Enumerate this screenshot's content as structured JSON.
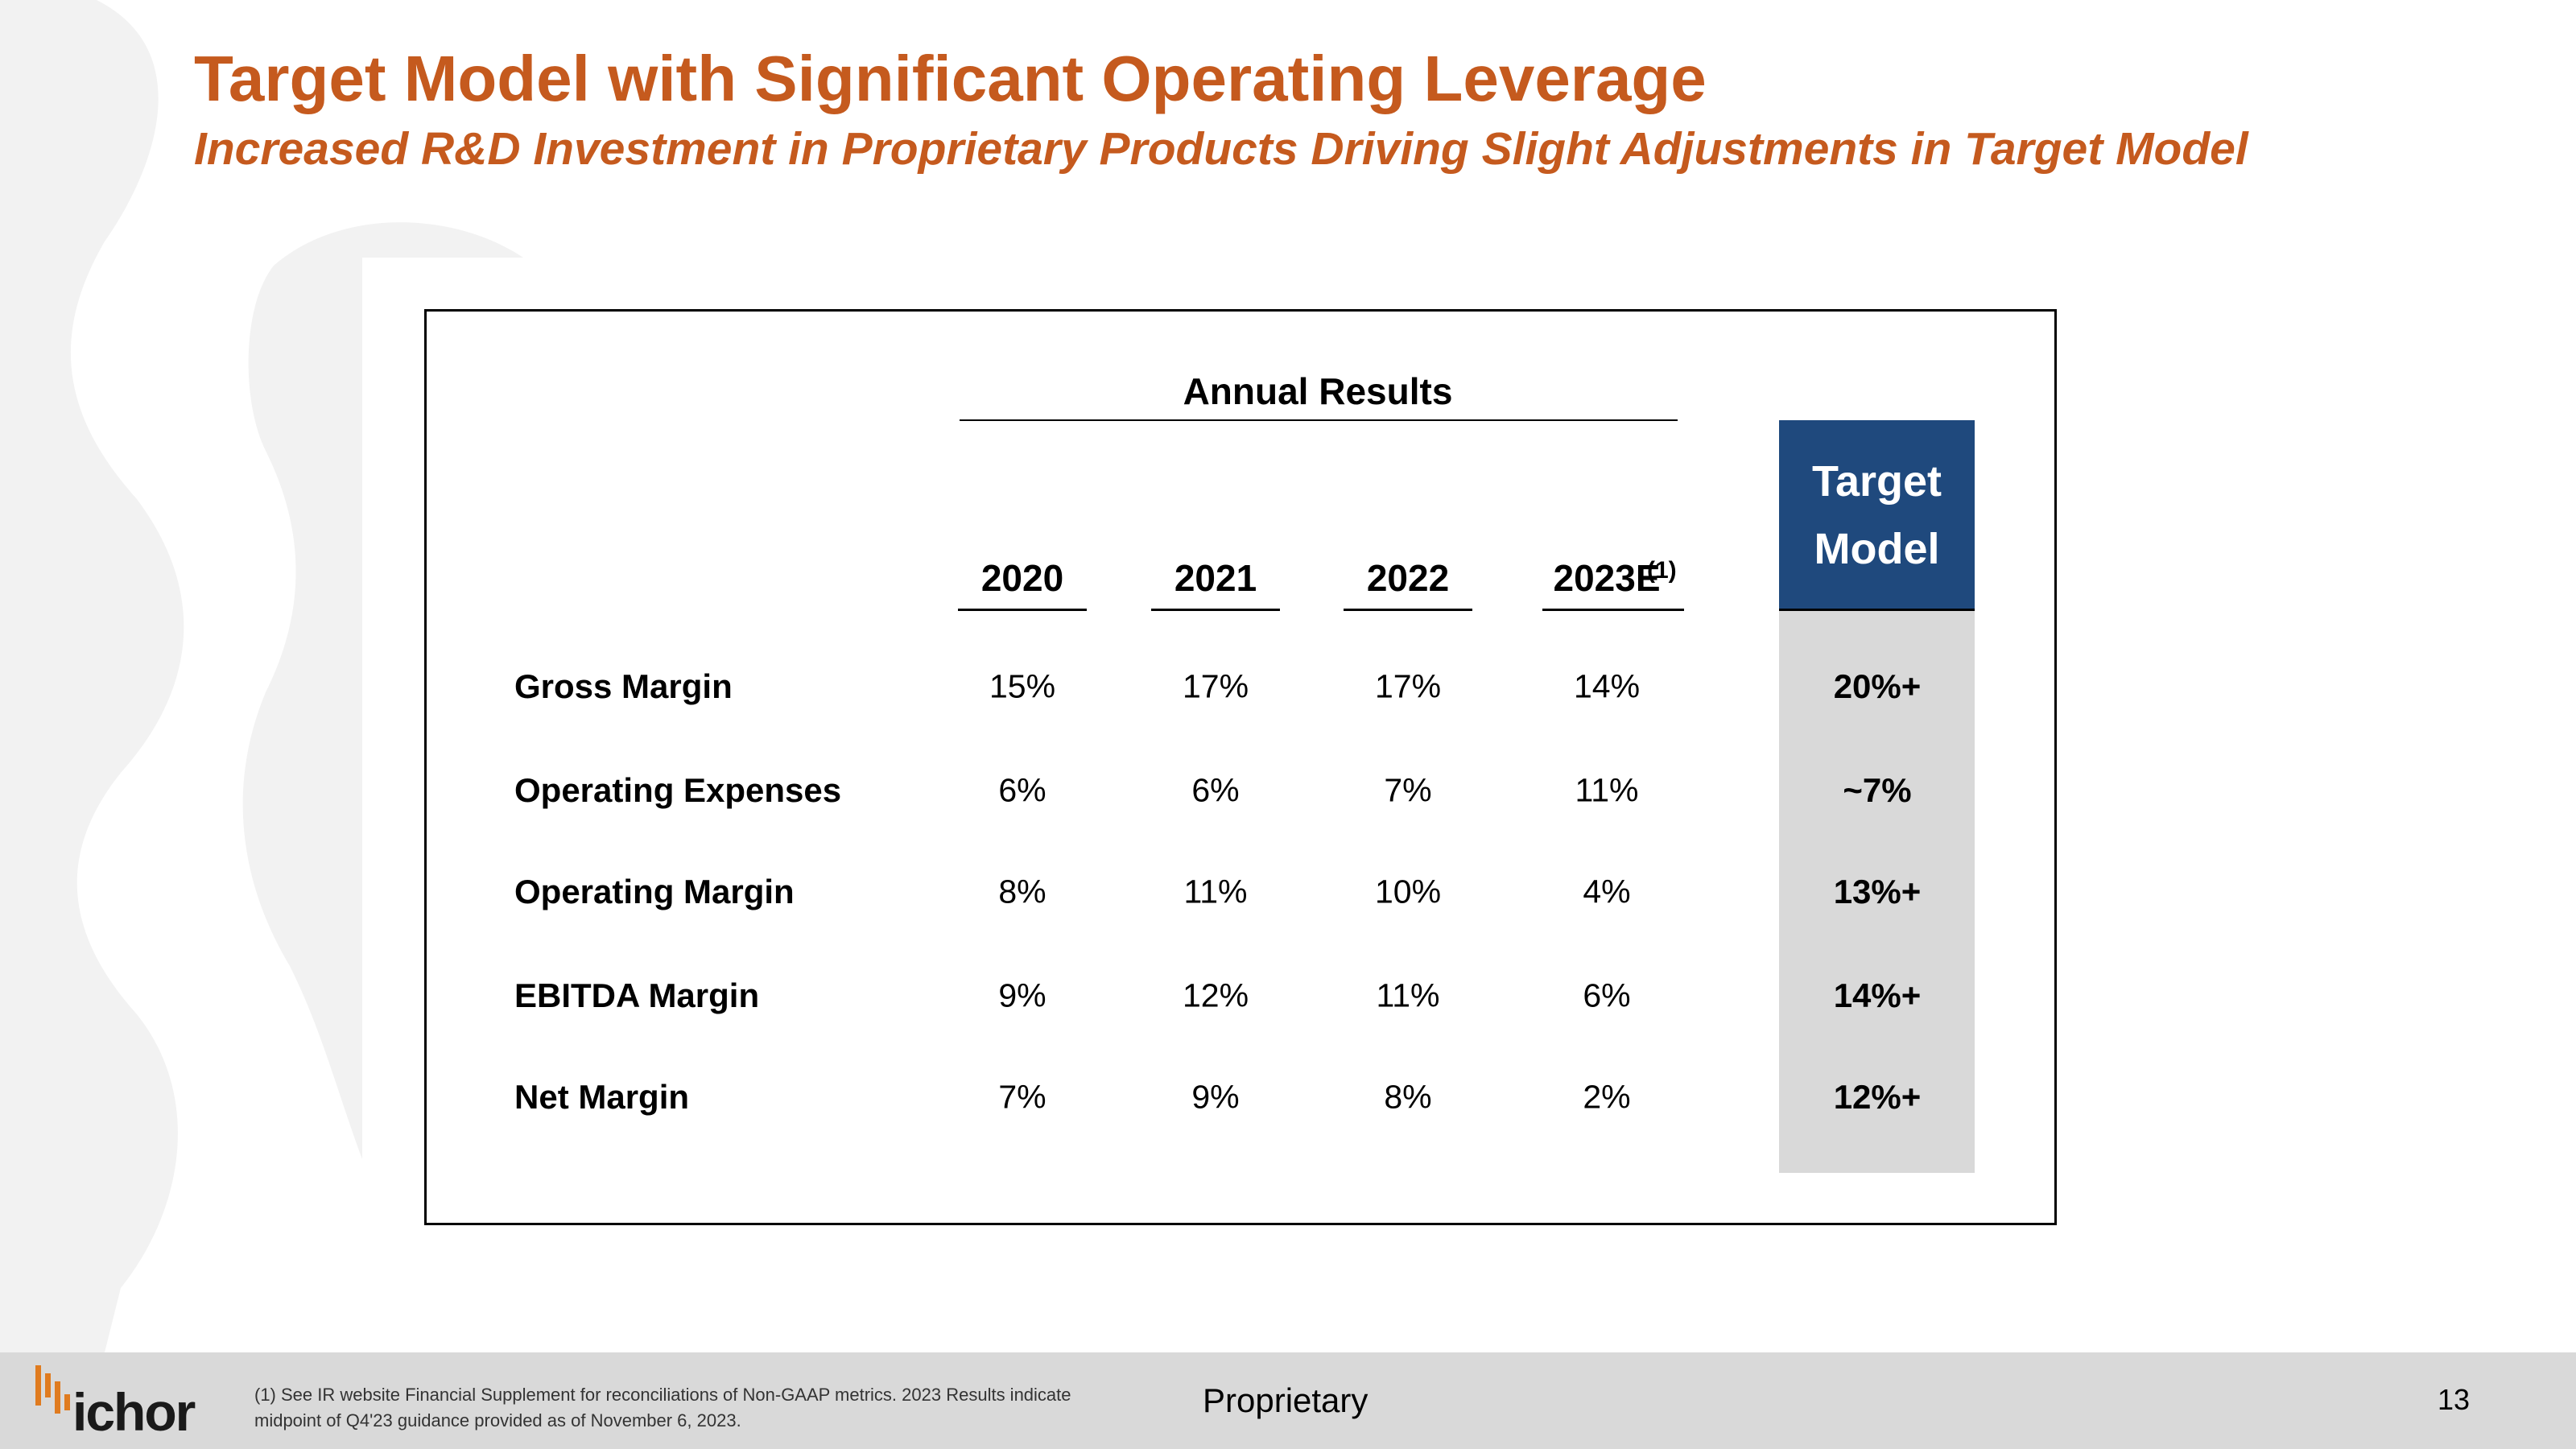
{
  "header": {
    "title": "Target Model with Significant Operating Leverage",
    "subtitle": "Increased R&D Investment in Proprietary Products Driving Slight Adjustments in Target Model"
  },
  "table": {
    "group_header": "Annual Results",
    "columns": [
      "2020",
      "2021",
      "2022",
      "2023E"
    ],
    "column_note": "(1)",
    "target_header": "Target Model",
    "rows": [
      {
        "label": "Gross Margin",
        "values": [
          "15%",
          "17%",
          "17%",
          "14%"
        ],
        "target": "20%+"
      },
      {
        "label": "Operating Expenses",
        "values": [
          "6%",
          "6%",
          "7%",
          "11%"
        ],
        "target": "~7%"
      },
      {
        "label": "Operating Margin",
        "values": [
          "8%",
          "11%",
          "10%",
          "4%"
        ],
        "target": "13%+"
      },
      {
        "label": "EBITDA Margin",
        "values": [
          "9%",
          "12%",
          "11%",
          "6%"
        ],
        "target": "14%+"
      },
      {
        "label": "Net Margin",
        "values": [
          "7%",
          "9%",
          "8%",
          "2%"
        ],
        "target": "12%+"
      }
    ]
  },
  "footer": {
    "logo": "ichor",
    "footnote": [
      "(1) See IR website Financial Supplement for reconciliations of Non-GAAP metrics.  2023 Results indicate",
      "midpoint of Q4'23 guidance provided as of November 6, 2023."
    ],
    "classification": "Proprietary",
    "page_number": "13"
  }
}
